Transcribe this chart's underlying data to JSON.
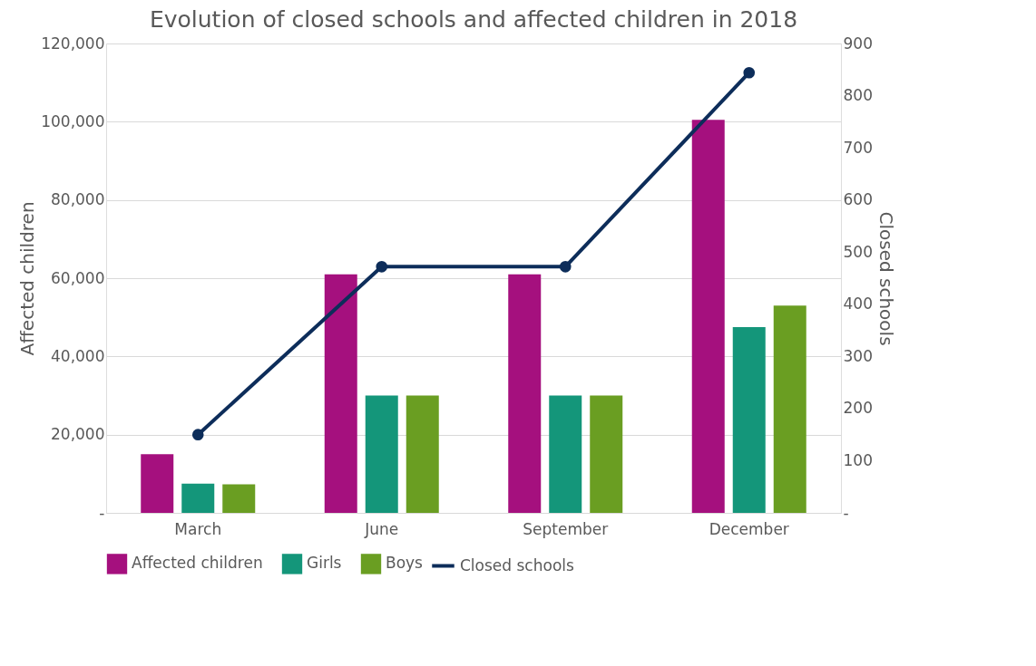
{
  "chart_data": {
    "type": "bar",
    "title": "Evolution of closed schools and affected children in 2018",
    "ylabel": "Affected children",
    "y2label": "Closed schools",
    "categories": [
      "March",
      "June",
      "September",
      "December"
    ],
    "series": [
      {
        "name": "Affected children",
        "color": "#a5107e",
        "values": [
          15000,
          61000,
          61000,
          100500
        ]
      },
      {
        "name": "Girls",
        "color": "#14967a",
        "values": [
          7500,
          30000,
          30000,
          47500
        ]
      },
      {
        "name": "Boys",
        "color": "#6a9e22",
        "values": [
          7300,
          30000,
          30000,
          53000
        ]
      },
      {
        "name": "Closed schools",
        "color": "#0d2d5a",
        "type": "line",
        "axis": "y2",
        "marker": "circle",
        "values": [
          150,
          472,
          472,
          844
        ]
      }
    ],
    "ylim": [
      0,
      120000
    ],
    "yticks": [
      {
        "value": 0,
        "label": "-"
      },
      {
        "value": 20000,
        "label": "20,000"
      },
      {
        "value": 40000,
        "label": "40,000"
      },
      {
        "value": 60000,
        "label": "60,000"
      },
      {
        "value": 80000,
        "label": "80,000"
      },
      {
        "value": 100000,
        "label": "100,000"
      },
      {
        "value": 120000,
        "label": "120,000"
      }
    ],
    "y2lim": [
      0,
      900
    ],
    "y2ticks": [
      {
        "value": 0,
        "label": "-"
      },
      100,
      200,
      300,
      400,
      500,
      600,
      700,
      800,
      900
    ],
    "grid": "y",
    "legend": "bottom"
  }
}
